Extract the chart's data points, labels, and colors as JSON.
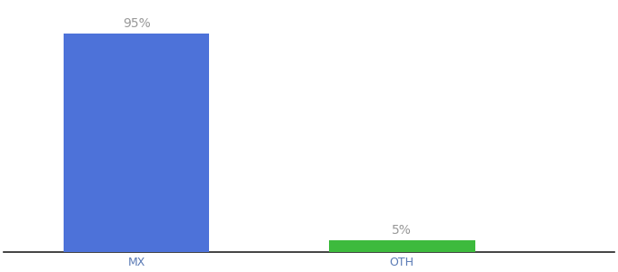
{
  "categories": [
    "MX",
    "OTH"
  ],
  "values": [
    95,
    5
  ],
  "bar_colors": [
    "#4d72d9",
    "#3dba3d"
  ],
  "label_texts": [
    "95%",
    "5%"
  ],
  "ylim": [
    0,
    108
  ],
  "background_color": "#ffffff",
  "bar_width": 0.55,
  "label_fontsize": 10,
  "tick_fontsize": 9,
  "tick_color": "#5a7ab5",
  "label_color": "#999999",
  "x_positions": [
    1,
    2
  ],
  "xlim": [
    0.5,
    2.8
  ]
}
